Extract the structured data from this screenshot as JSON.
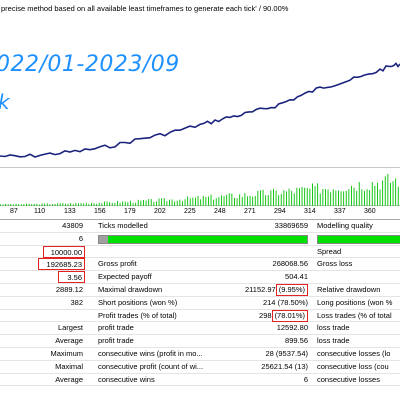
{
  "header": {
    "text": "precise method based on all available least timeframes to generate each tick' / 90.00%"
  },
  "overlay": {
    "line1": "022/01-2023/09",
    "line2": "k"
  },
  "colors": {
    "balance_line": "#1a237e",
    "volume_bars": "#00c000",
    "highlight_box": "#e32222",
    "quality_bar": "#00e000",
    "overlay_text": "#1e90ff"
  },
  "xaxis": {
    "ticks": [
      "87",
      "110",
      "133",
      "156",
      "179",
      "202",
      "225",
      "248",
      "271",
      "294",
      "314",
      "337",
      "360"
    ]
  },
  "table": {
    "rows": [
      {
        "c1": "43809",
        "c2": "Ticks modelled",
        "c3": "33869659",
        "c4": "Modelling quality"
      },
      {
        "c1": "6",
        "c2": "",
        "c3": "",
        "c4": ""
      },
      {
        "c1": "10000.00",
        "c2": "",
        "c3": "",
        "c4": "Spread"
      },
      {
        "c1": "192685.23",
        "c2": "Gross profit",
        "c3": "268068.56",
        "c4": "Gross loss"
      },
      {
        "c1": "3.56",
        "c2": "Expected payoff",
        "c3": "504.41",
        "c4": ""
      },
      {
        "c1": "2889.12",
        "c2": "Maximal drawdown",
        "c3a": "21152.97",
        "c3b": "(9.95%)",
        "c4": "Relative drawdown"
      },
      {
        "c1": "382",
        "c2": "Short positions (won %)",
        "c3": "214 (78.50%)",
        "c4": "Long positions (won %"
      },
      {
        "c1": "",
        "c2": "Profit trades (% of total)",
        "c3a": "298",
        "c3b": "(78.01%)",
        "c4": "Loss trades (% of total"
      },
      {
        "c1": "Largest",
        "c2": "profit trade",
        "c3": "12592.80",
        "c4": "loss trade"
      },
      {
        "c1": "Average",
        "c2": "profit trade",
        "c3": "899.56",
        "c4": "loss trade"
      },
      {
        "c1": "Maximum",
        "c2": "consecutive wins (profit in mo...",
        "c3": "28 (9537.54)",
        "c4": "consecutive losses (lo"
      },
      {
        "c1": "Maximal",
        "c2": "consecutive profit (count of wi...",
        "c3": "25621.54 (13)",
        "c4": "consecutive loss (cou"
      },
      {
        "c1": "Average",
        "c2": "consecutive wins",
        "c3": "6",
        "c4": "consecutive losses"
      }
    ]
  }
}
